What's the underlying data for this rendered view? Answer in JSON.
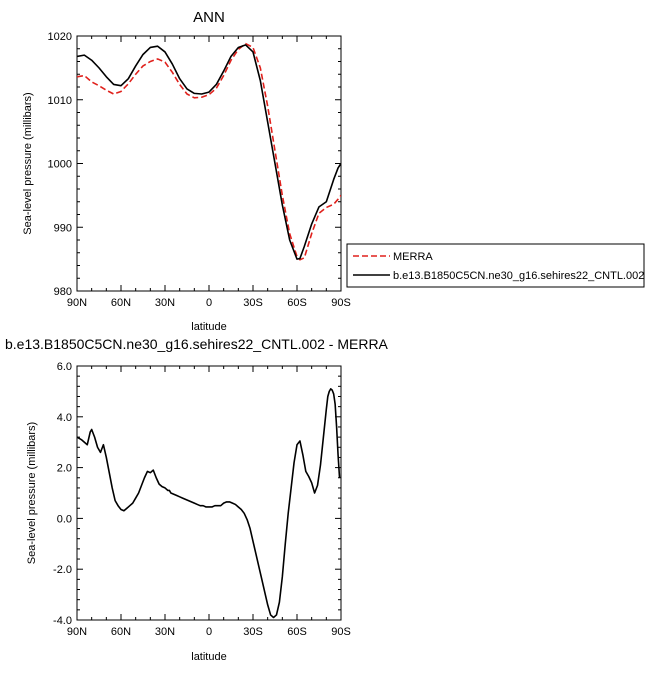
{
  "chart_data": [
    {
      "type": "line",
      "title": "ANN",
      "xlabel": "latitude",
      "ylabel": "Sea-level pressure (millibars)",
      "xlim": [
        90,
        -90
      ],
      "ylim": [
        980,
        1020
      ],
      "x_ticks": [
        90,
        60,
        30,
        0,
        -30,
        -60,
        -90
      ],
      "x_tick_labels": [
        "90N",
        "60N",
        "30N",
        "0",
        "30S",
        "60S",
        "90S"
      ],
      "y_ticks": [
        980,
        990,
        1000,
        1010,
        1020
      ],
      "y_tick_labels": [
        "980",
        "990",
        "1000",
        "1010",
        "1020"
      ],
      "legend_position": "right",
      "series": [
        {
          "name": "MERRA",
          "color": "#e0211c",
          "dash": true,
          "x": [
            90,
            85,
            80,
            75,
            70,
            65,
            60,
            55,
            50,
            45,
            40,
            35,
            30,
            25,
            20,
            15,
            10,
            5,
            0,
            -5,
            -10,
            -15,
            -20,
            -25,
            -30,
            -35,
            -40,
            -45,
            -50,
            -55,
            -60,
            -62,
            -65,
            -70,
            -75,
            -80,
            -85,
            -88,
            -90
          ],
          "y": [
            1013.6,
            1013.8,
            1012.8,
            1012.2,
            1011.5,
            1010.9,
            1011.3,
            1012.5,
            1014.0,
            1015.3,
            1016.0,
            1016.4,
            1015.9,
            1014.3,
            1012.4,
            1010.9,
            1010.3,
            1010.4,
            1010.8,
            1011.8,
            1013.8,
            1016.2,
            1017.9,
            1018.8,
            1018.2,
            1015.0,
            1009.0,
            1002.0,
            995.0,
            989.0,
            985.4,
            984.9,
            985.2,
            989.0,
            992.2,
            993.1,
            993.6,
            994.4,
            995.0
          ]
        },
        {
          "name": "b.e13.B1850C5CN.ne30_g16.sehires22_CNTL.002",
          "color": "#000000",
          "dash": false,
          "x": [
            90,
            85,
            80,
            75,
            70,
            65,
            60,
            55,
            50,
            45,
            40,
            35,
            30,
            25,
            20,
            15,
            10,
            5,
            0,
            -5,
            -10,
            -15,
            -20,
            -25,
            -30,
            -35,
            -40,
            -45,
            -50,
            -55,
            -60,
            -62,
            -65,
            -70,
            -75,
            -80,
            -85,
            -88,
            -90
          ],
          "y": [
            1016.8,
            1017.0,
            1016.2,
            1015.0,
            1013.6,
            1012.4,
            1012.2,
            1013.3,
            1015.3,
            1017.1,
            1018.2,
            1018.4,
            1017.5,
            1015.6,
            1013.3,
            1011.7,
            1011.0,
            1010.9,
            1011.2,
            1012.4,
            1014.5,
            1016.8,
            1018.2,
            1018.6,
            1017.5,
            1013.0,
            1006.5,
            1000.0,
            993.5,
            988.0,
            985.0,
            985.1,
            987.0,
            990.5,
            993.2,
            994.0,
            997.5,
            999.3,
            1000.0
          ]
        }
      ]
    },
    {
      "type": "line",
      "title": "b.e13.B1850C5CN.ne30_g16.sehires22_CNTL.002 - MERRA",
      "xlabel": "latitude",
      "ylabel": "Sea-level pressure (millibars)",
      "xlim": [
        90,
        -90
      ],
      "ylim": [
        -4,
        6
      ],
      "x_ticks": [
        90,
        60,
        30,
        0,
        -30,
        -60,
        -90
      ],
      "x_tick_labels": [
        "90N",
        "60N",
        "30N",
        "0",
        "30S",
        "60S",
        "90S"
      ],
      "y_ticks": [
        -4,
        -2,
        0,
        2,
        4,
        6
      ],
      "y_tick_labels": [
        "-4.0",
        "-2.0",
        "0.0",
        "2.0",
        "4.0",
        "6.0"
      ],
      "series": [
        {
          "color": "#000000",
          "dash": false,
          "x": [
            90,
            87,
            83,
            81,
            80,
            78,
            76,
            74,
            72,
            70,
            68,
            66,
            64,
            62,
            60,
            58,
            56,
            54,
            52,
            50,
            48,
            46,
            44,
            42,
            40,
            38,
            36,
            34,
            32,
            30,
            28,
            27,
            26,
            24,
            22,
            20,
            18,
            16,
            14,
            12,
            10,
            8,
            6,
            4,
            2,
            0,
            -2,
            -4,
            -6,
            -8,
            -10,
            -12,
            -14,
            -16,
            -18,
            -20,
            -22,
            -24,
            -26,
            -28,
            -30,
            -32,
            -34,
            -36,
            -38,
            -40,
            -42,
            -44,
            -46,
            -48,
            -50,
            -52,
            -53,
            -54,
            -56,
            -58,
            -60,
            -62,
            -64,
            -66,
            -68,
            -70,
            -72,
            -74,
            -76,
            -78,
            -80,
            -81,
            -82,
            -83,
            -84,
            -85,
            -86,
            -87,
            -88,
            -89
          ],
          "y": [
            3.2,
            3.1,
            2.9,
            3.4,
            3.5,
            3.2,
            2.8,
            2.6,
            2.9,
            2.4,
            1.8,
            1.2,
            0.7,
            0.5,
            0.35,
            0.3,
            0.4,
            0.5,
            0.6,
            0.8,
            1.0,
            1.3,
            1.6,
            1.85,
            1.8,
            1.9,
            1.6,
            1.35,
            1.25,
            1.2,
            1.1,
            1.1,
            1.0,
            0.95,
            0.9,
            0.85,
            0.8,
            0.75,
            0.7,
            0.65,
            0.6,
            0.55,
            0.5,
            0.5,
            0.45,
            0.45,
            0.45,
            0.5,
            0.5,
            0.5,
            0.6,
            0.65,
            0.65,
            0.6,
            0.55,
            0.45,
            0.35,
            0.2,
            -0.05,
            -0.4,
            -0.9,
            -1.4,
            -1.9,
            -2.4,
            -2.9,
            -3.4,
            -3.8,
            -3.9,
            -3.8,
            -3.3,
            -2.3,
            -1.0,
            -0.4,
            0.2,
            1.2,
            2.2,
            2.9,
            3.05,
            2.5,
            1.85,
            1.65,
            1.4,
            1.0,
            1.3,
            2.1,
            3.2,
            4.3,
            4.8,
            5.0,
            5.1,
            5.05,
            4.9,
            4.5,
            3.6,
            2.5,
            1.6
          ]
        }
      ]
    }
  ],
  "legend": {
    "entries": [
      {
        "label": "MERRA",
        "color": "#e0211c",
        "dash": true
      },
      {
        "label": "b.e13.B1850C5CN.ne30_g16.sehires22_CNTL.002",
        "color": "#000000",
        "dash": false
      }
    ]
  }
}
